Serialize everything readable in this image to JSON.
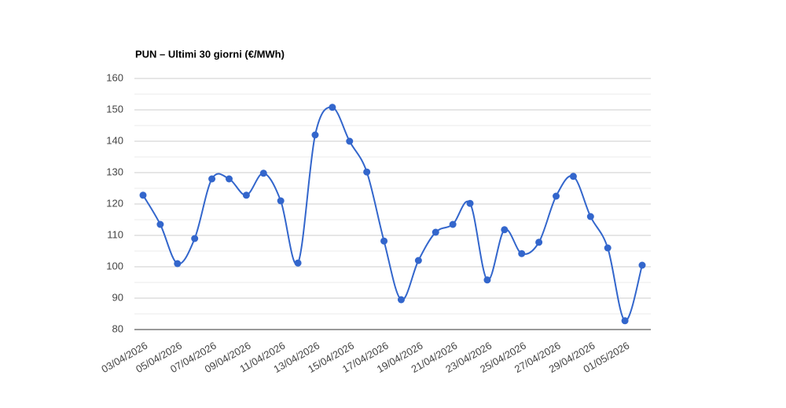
{
  "chart_data": {
    "type": "line",
    "title": "PUN – Ultimi 30 giorni (€/MWh)",
    "categories": [
      "03/04/2026",
      null,
      "05/04/2026",
      null,
      "07/04/2026",
      null,
      "09/04/2026",
      null,
      "11/04/2026",
      null,
      "13/04/2026",
      null,
      "15/04/2026",
      null,
      "17/04/2026",
      null,
      "19/04/2026",
      null,
      "21/04/2026",
      null,
      "23/04/2026",
      null,
      "25/04/2026",
      null,
      "27/04/2026",
      null,
      "29/04/2026",
      null,
      "01/05/2026",
      null
    ],
    "values": [
      122.8,
      113.5,
      101,
      109,
      128,
      128,
      122.8,
      129.8,
      121,
      101.2,
      142,
      150.8,
      140,
      130.2,
      108.2,
      89.5,
      102,
      111,
      113.5,
      120.2,
      95.8,
      111.8,
      104.2,
      107.8,
      122.5,
      128.8,
      116,
      106,
      82.8,
      100.5
    ],
    "color": "#3366cc",
    "ylim": [
      80,
      160
    ],
    "yticks": [
      80,
      90,
      100,
      110,
      120,
      130,
      140,
      150,
      160
    ],
    "grid": true
  }
}
